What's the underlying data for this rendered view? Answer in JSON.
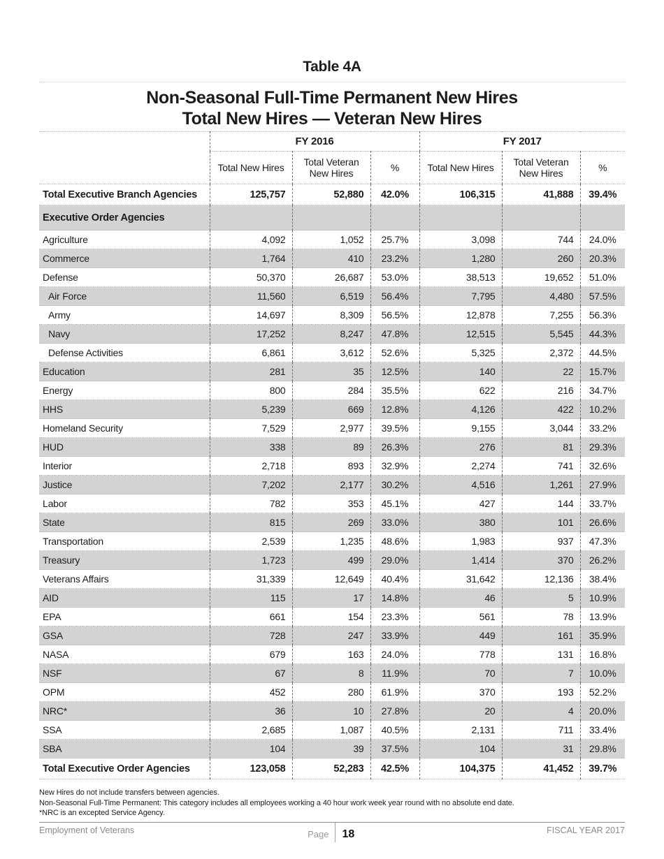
{
  "page": {
    "title": "Table 4A",
    "subtitle_line1": "Non-Seasonal Full-Time Permanent New Hires",
    "subtitle_line2": "Total New Hires — Veteran New Hires"
  },
  "table": {
    "group_headers": {
      "fy2016": "FY 2016",
      "fy2017": "FY 2017"
    },
    "column_headers": [
      "Total New Hires",
      "Total Veteran New Hires",
      "%",
      "Total New Hires",
      "Total Veteran New Hires",
      "%"
    ],
    "rows": [
      {
        "label": "Total Executive Branch Agencies",
        "style": "total",
        "shaded": false,
        "indent": false,
        "values": [
          "125,757",
          "52,880",
          "42.0%",
          "106,315",
          "41,888",
          "39.4%"
        ]
      },
      {
        "label": "Executive Order Agencies",
        "style": "section",
        "shaded": true,
        "indent": false,
        "values": [
          "",
          "",
          "",
          "",
          "",
          ""
        ]
      },
      {
        "label": "Agriculture",
        "style": "data",
        "shaded": false,
        "indent": false,
        "values": [
          "4,092",
          "1,052",
          "25.7%",
          "3,098",
          "744",
          "24.0%"
        ]
      },
      {
        "label": "Commerce",
        "style": "data",
        "shaded": true,
        "indent": false,
        "values": [
          "1,764",
          "410",
          "23.2%",
          "1,280",
          "260",
          "20.3%"
        ]
      },
      {
        "label": "Defense",
        "style": "data",
        "shaded": false,
        "indent": false,
        "values": [
          "50,370",
          "26,687",
          "53.0%",
          "38,513",
          "19,652",
          "51.0%"
        ]
      },
      {
        "label": "Air Force",
        "style": "data",
        "shaded": true,
        "indent": true,
        "values": [
          "11,560",
          "6,519",
          "56.4%",
          "7,795",
          "4,480",
          "57.5%"
        ]
      },
      {
        "label": "Army",
        "style": "data",
        "shaded": false,
        "indent": true,
        "values": [
          "14,697",
          "8,309",
          "56.5%",
          "12,878",
          "7,255",
          "56.3%"
        ]
      },
      {
        "label": "Navy",
        "style": "data",
        "shaded": true,
        "indent": true,
        "values": [
          "17,252",
          "8,247",
          "47.8%",
          "12,515",
          "5,545",
          "44.3%"
        ]
      },
      {
        "label": "Defense Activities",
        "style": "data",
        "shaded": false,
        "indent": true,
        "values": [
          "6,861",
          "3,612",
          "52.6%",
          "5,325",
          "2,372",
          "44.5%"
        ]
      },
      {
        "label": "Education",
        "style": "data",
        "shaded": true,
        "indent": false,
        "values": [
          "281",
          "35",
          "12.5%",
          "140",
          "22",
          "15.7%"
        ]
      },
      {
        "label": "Energy",
        "style": "data",
        "shaded": false,
        "indent": false,
        "values": [
          "800",
          "284",
          "35.5%",
          "622",
          "216",
          "34.7%"
        ]
      },
      {
        "label": "HHS",
        "style": "data",
        "shaded": true,
        "indent": false,
        "values": [
          "5,239",
          "669",
          "12.8%",
          "4,126",
          "422",
          "10.2%"
        ]
      },
      {
        "label": "Homeland Security",
        "style": "data",
        "shaded": false,
        "indent": false,
        "values": [
          "7,529",
          "2,977",
          "39.5%",
          "9,155",
          "3,044",
          "33.2%"
        ]
      },
      {
        "label": "HUD",
        "style": "data",
        "shaded": true,
        "indent": false,
        "values": [
          "338",
          "89",
          "26.3%",
          "276",
          "81",
          "29.3%"
        ]
      },
      {
        "label": "Interior",
        "style": "data",
        "shaded": false,
        "indent": false,
        "values": [
          "2,718",
          "893",
          "32.9%",
          "2,274",
          "741",
          "32.6%"
        ]
      },
      {
        "label": "Justice",
        "style": "data",
        "shaded": true,
        "indent": false,
        "values": [
          "7,202",
          "2,177",
          "30.2%",
          "4,516",
          "1,261",
          "27.9%"
        ]
      },
      {
        "label": "Labor",
        "style": "data",
        "shaded": false,
        "indent": false,
        "values": [
          "782",
          "353",
          "45.1%",
          "427",
          "144",
          "33.7%"
        ]
      },
      {
        "label": "State",
        "style": "data",
        "shaded": true,
        "indent": false,
        "values": [
          "815",
          "269",
          "33.0%",
          "380",
          "101",
          "26.6%"
        ]
      },
      {
        "label": "Transportation",
        "style": "data",
        "shaded": false,
        "indent": false,
        "values": [
          "2,539",
          "1,235",
          "48.6%",
          "1,983",
          "937",
          "47.3%"
        ]
      },
      {
        "label": "Treasury",
        "style": "data",
        "shaded": true,
        "indent": false,
        "values": [
          "1,723",
          "499",
          "29.0%",
          "1,414",
          "370",
          "26.2%"
        ]
      },
      {
        "label": "Veterans Affairs",
        "style": "data",
        "shaded": false,
        "indent": false,
        "values": [
          "31,339",
          "12,649",
          "40.4%",
          "31,642",
          "12,136",
          "38.4%"
        ]
      },
      {
        "label": "AID",
        "style": "data",
        "shaded": true,
        "indent": false,
        "values": [
          "115",
          "17",
          "14.8%",
          "46",
          "5",
          "10.9%"
        ]
      },
      {
        "label": "EPA",
        "style": "data",
        "shaded": false,
        "indent": false,
        "values": [
          "661",
          "154",
          "23.3%",
          "561",
          "78",
          "13.9%"
        ]
      },
      {
        "label": "GSA",
        "style": "data",
        "shaded": true,
        "indent": false,
        "values": [
          "728",
          "247",
          "33.9%",
          "449",
          "161",
          "35.9%"
        ]
      },
      {
        "label": "NASA",
        "style": "data",
        "shaded": false,
        "indent": false,
        "values": [
          "679",
          "163",
          "24.0%",
          "778",
          "131",
          "16.8%"
        ]
      },
      {
        "label": "NSF",
        "style": "data",
        "shaded": true,
        "indent": false,
        "values": [
          "67",
          "8",
          "11.9%",
          "70",
          "7",
          "10.0%"
        ]
      },
      {
        "label": "OPM",
        "style": "data",
        "shaded": false,
        "indent": false,
        "values": [
          "452",
          "280",
          "61.9%",
          "370",
          "193",
          "52.2%"
        ]
      },
      {
        "label": "NRC*",
        "style": "data",
        "shaded": true,
        "indent": false,
        "values": [
          "36",
          "10",
          "27.8%",
          "20",
          "4",
          "20.0%"
        ]
      },
      {
        "label": "SSA",
        "style": "data",
        "shaded": false,
        "indent": false,
        "values": [
          "2,685",
          "1,087",
          "40.5%",
          "2,131",
          "711",
          "33.4%"
        ]
      },
      {
        "label": "SBA",
        "style": "data",
        "shaded": true,
        "indent": false,
        "values": [
          "104",
          "39",
          "37.5%",
          "104",
          "31",
          "29.8%"
        ]
      },
      {
        "label": "Total Executive Order Agencies",
        "style": "total",
        "shaded": false,
        "indent": false,
        "values": [
          "123,058",
          "52,283",
          "42.5%",
          "104,375",
          "41,452",
          "39.7%"
        ]
      }
    ]
  },
  "footnotes": [
    "New Hires do not include transfers between agencies.",
    "Non-Seasonal Full-Time Permanent: This category includes all employees working a 40 hour work week year round with no absolute end date.",
    "*NRC is an excepted Service Agency."
  ],
  "footer": {
    "left": "Employment of Veterans",
    "page_label": "Page",
    "page_number": "18",
    "right": "FISCAL YEAR 2017"
  }
}
